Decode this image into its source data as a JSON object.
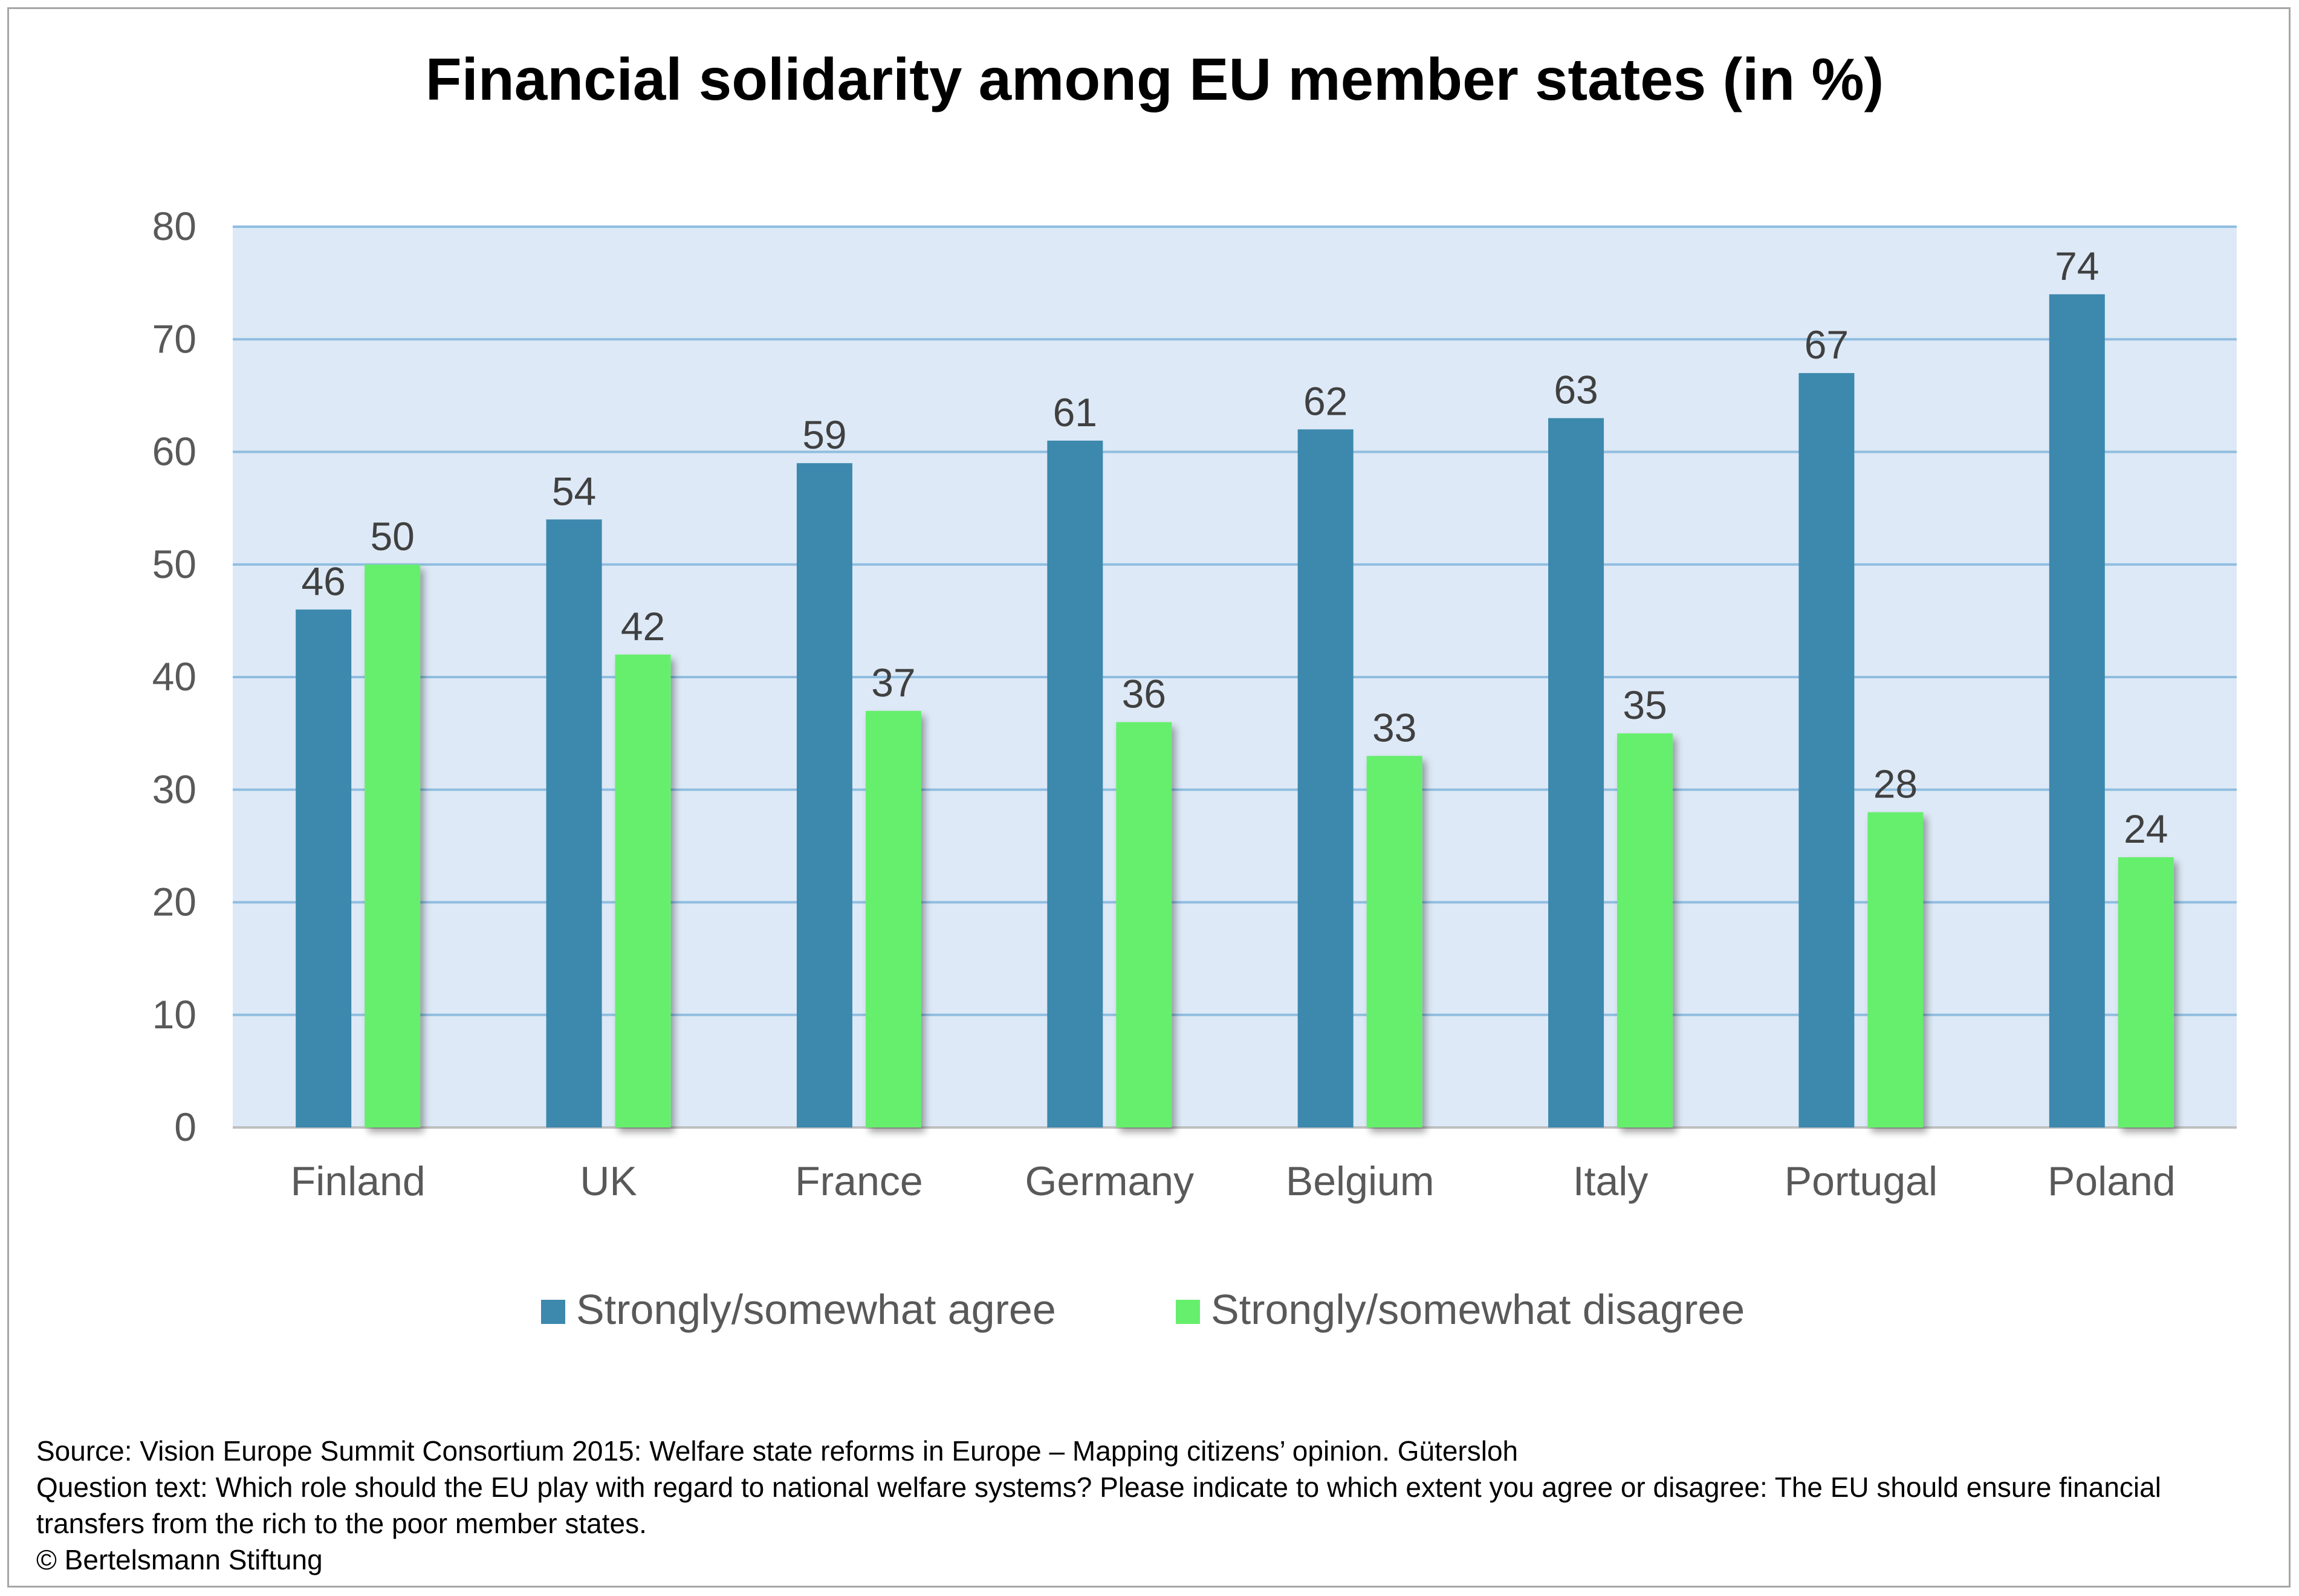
{
  "chart_data": {
    "type": "bar",
    "title": "Financial solidarity among EU member states (in %)",
    "xlabel": "",
    "ylabel": "",
    "ylim": [
      0,
      80
    ],
    "yticks": [
      0,
      10,
      20,
      30,
      40,
      50,
      60,
      70,
      80
    ],
    "grid": true,
    "legend_position": "bottom",
    "categories": [
      "Finland",
      "UK",
      "France",
      "Germany",
      "Belgium",
      "Italy",
      "Portugal",
      "Poland"
    ],
    "series": [
      {
        "name": "Strongly/somewhat agree",
        "values": [
          46,
          54,
          59,
          61,
          62,
          63,
          67,
          74
        ],
        "color": "#3d88ad"
      },
      {
        "name": "Strongly/somewhat disagree",
        "values": [
          50,
          42,
          37,
          36,
          33,
          35,
          28,
          24
        ],
        "color": "#66ef6d"
      }
    ]
  },
  "colors": {
    "plot_background": "#dde9f6",
    "gridline": "#8fbde0",
    "axis_text": "#595959",
    "title_text": "#000000"
  },
  "footer": {
    "source": "Source: Vision Europe Summit Consortium 2015: Welfare state reforms in Europe – Mapping citizens’ opinion. Gütersloh",
    "question": "Question text: Which role should the EU play with regard to national welfare systems? Please indicate to which extent you agree or disagree: The EU should ensure financial transfers from the rich to the poor member states.",
    "copyright": "© Bertelsmann Stiftung"
  }
}
